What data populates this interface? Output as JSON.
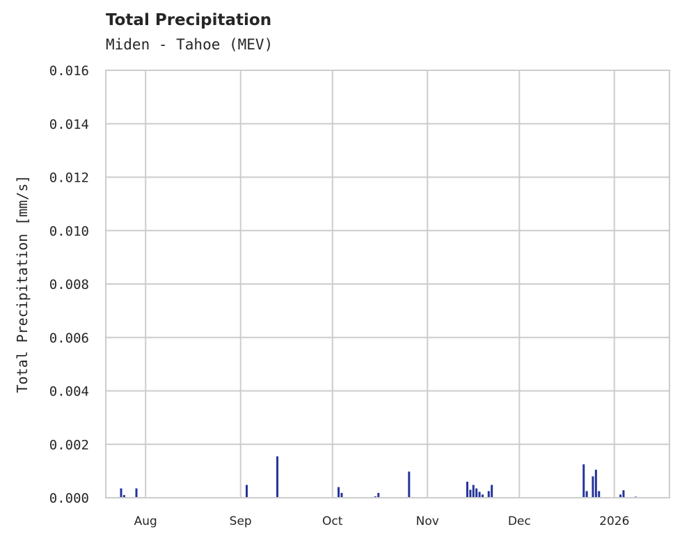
{
  "chart": {
    "title": "Total Precipitation",
    "subtitle": "Miden - Tahoe (MEV)",
    "ylabel": "Total Precipitation [mm/s]",
    "bar_color": "#24339a",
    "grid_color": "#cccccc"
  },
  "chart_data": {
    "type": "bar",
    "title": "Total Precipitation",
    "subtitle": "Miden - Tahoe (MEV)",
    "xlabel": "",
    "ylabel": "Total Precipitation [mm/s]",
    "ylim": [
      0,
      0.016
    ],
    "yticks": [
      "0.000",
      "0.002",
      "0.004",
      "0.006",
      "0.008",
      "0.010",
      "0.012",
      "0.014",
      "0.016"
    ],
    "xticks": [
      "Aug",
      "Sep",
      "Oct",
      "Nov",
      "Dec",
      "2026"
    ],
    "grid": true,
    "legend": null,
    "x": [
      "2025-07-24",
      "2025-07-25",
      "2025-07-29",
      "2025-09-03",
      "2025-09-13",
      "2025-10-03",
      "2025-10-04",
      "2025-10-15",
      "2025-10-16",
      "2025-10-26",
      "2025-11-14",
      "2025-11-15",
      "2025-11-16",
      "2025-11-17",
      "2025-11-18",
      "2025-11-19",
      "2025-11-21",
      "2025-11-22",
      "2025-12-22",
      "2025-12-23",
      "2025-12-25",
      "2025-12-26",
      "2025-12-27",
      "2026-01-03",
      "2026-01-04",
      "2026-01-08"
    ],
    "values": [
      0.00035,
      0.0001,
      0.00035,
      0.00048,
      0.00155,
      0.0004,
      0.00018,
      5e-05,
      0.00018,
      0.00098,
      0.0006,
      0.0003,
      0.00048,
      0.00035,
      0.00022,
      0.00012,
      0.00025,
      0.00048,
      0.00125,
      0.00025,
      0.0008,
      0.00105,
      0.00025,
      0.00012,
      0.00028,
      4e-05
    ]
  }
}
